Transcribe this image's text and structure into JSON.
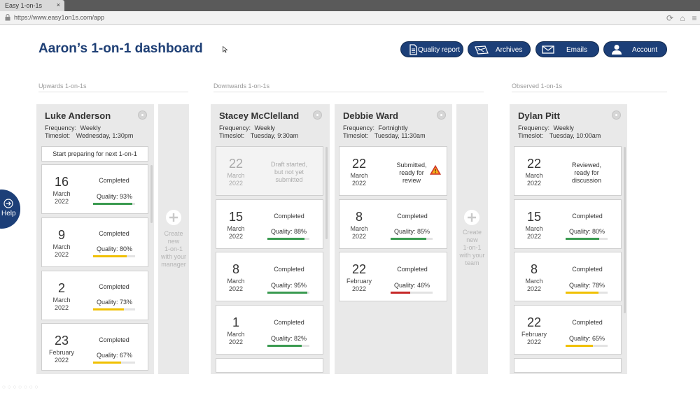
{
  "browser": {
    "tab_title": "Easy 1-on-1s",
    "tab_close": "×",
    "url": "https://www.easy1on1s.com/app",
    "icons": [
      "lock-icon",
      "reload-icon",
      "home-icon",
      "menu-icon"
    ]
  },
  "header": {
    "title": "Aaron’s 1-on-1 dashboard",
    "buttons": {
      "quality_report": "Quality report",
      "archives": "Archives",
      "emails": "Emails",
      "account": "Account"
    }
  },
  "sections": {
    "upwards": "Upwards 1-on-1s",
    "downwards": "Downwards 1-on-1s",
    "observed": "Observed 1-on-1s"
  },
  "labels": {
    "frequency": "Frequency:",
    "timeslot": "Timeslot:",
    "prepare": "Start preparing for next 1-on-1",
    "create_manager": [
      "Create",
      "new",
      "1-on-1",
      "with your",
      "manager"
    ],
    "create_team": [
      "Create",
      "new",
      "1-on-1",
      "with your",
      "team"
    ],
    "help": "Help"
  },
  "colors": {
    "brand": "#1c3f78",
    "good": "#3a9a50",
    "ok": "#f0c000",
    "bad": "#c62828"
  },
  "columns": [
    {
      "name": "Luke Anderson",
      "frequency": "Weekly",
      "timeslot": "Wednesday, 1:30pm",
      "cards": [
        {
          "day": "16",
          "month": "March",
          "year": "2022",
          "status": "Completed",
          "quality": "Quality: 93%",
          "q": 0.93,
          "color": "#3a9a50"
        },
        {
          "day": "9",
          "month": "March",
          "year": "2022",
          "status": "Completed",
          "quality": "Quality: 80%",
          "q": 0.8,
          "color": "#f0c000"
        },
        {
          "day": "2",
          "month": "March",
          "year": "2022",
          "status": "Completed",
          "quality": "Quality: 73%",
          "q": 0.73,
          "color": "#f0c000"
        },
        {
          "day": "23",
          "month": "February",
          "year": "2022",
          "status": "Completed",
          "quality": "Quality: 67%",
          "q": 0.67,
          "color": "#f0c000"
        }
      ]
    },
    {
      "name": "Stacey McClelland",
      "frequency": "Weekly",
      "timeslot": "Tuesday, 9:30am",
      "cards": [
        {
          "day": "22",
          "month": "March",
          "year": "2022",
          "status_lines": [
            "Draft started,",
            "but not yet",
            "submitted"
          ]
        },
        {
          "day": "15",
          "month": "March",
          "year": "2022",
          "status": "Completed",
          "quality": "Quality: 88%",
          "q": 0.88,
          "color": "#3a9a50"
        },
        {
          "day": "8",
          "month": "March",
          "year": "2022",
          "status": "Completed",
          "quality": "Quality: 95%",
          "q": 0.95,
          "color": "#3a9a50"
        },
        {
          "day": "1",
          "month": "March",
          "year": "2022",
          "status": "Completed",
          "quality": "Quality: 82%",
          "q": 0.82,
          "color": "#3a9a50"
        }
      ]
    },
    {
      "name": "Debbie Ward",
      "frequency": "Fortnightly",
      "timeslot": "Tuesday, 11:30am",
      "cards": [
        {
          "day": "22",
          "month": "March",
          "year": "2022",
          "status_lines": [
            "Submitted,",
            "ready for",
            "review"
          ],
          "warning": "warning-icon"
        },
        {
          "day": "8",
          "month": "March",
          "year": "2022",
          "status": "Completed",
          "quality": "Quality: 85%",
          "q": 0.85,
          "color": "#3a9a50"
        },
        {
          "day": "22",
          "month": "February",
          "year": "2022",
          "status": "Completed",
          "quality": "Quality: 46%",
          "q": 0.46,
          "color": "#c62828"
        }
      ]
    },
    {
      "name": "Dylan Pitt",
      "frequency": "Weekly",
      "timeslot": "Tuesday, 10:00am",
      "cards": [
        {
          "day": "22",
          "month": "March",
          "year": "2022",
          "status_lines": [
            "Reviewed,",
            "ready for",
            "discussion"
          ]
        },
        {
          "day": "15",
          "month": "March",
          "year": "2022",
          "status": "Completed",
          "quality": "Quality: 80%",
          "q": 0.8,
          "color": "#3a9a50"
        },
        {
          "day": "8",
          "month": "March",
          "year": "2022",
          "status": "Completed",
          "quality": "Quality: 78%",
          "q": 0.78,
          "color": "#f0c000"
        },
        {
          "day": "22",
          "month": "February",
          "year": "2022",
          "status": "Completed",
          "quality": "Quality: 65%",
          "q": 0.65,
          "color": "#f0c000"
        }
      ]
    }
  ]
}
